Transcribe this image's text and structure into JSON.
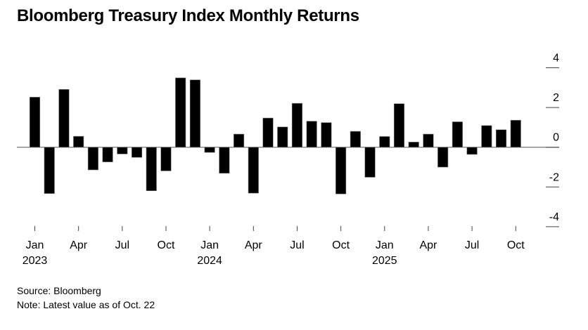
{
  "chart_data": {
    "type": "bar",
    "title": "Bloomberg Treasury Index Monthly Returns",
    "xlabel": "",
    "ylabel": "",
    "ylim": [
      -4,
      4
    ],
    "yticks": [
      4,
      2,
      0,
      -2,
      -4
    ],
    "y_axis_position": "right",
    "grid": false,
    "categories": [
      "Jan 2023",
      "Feb 2023",
      "Mar 2023",
      "Apr 2023",
      "May 2023",
      "Jun 2023",
      "Jul 2023",
      "Aug 2023",
      "Sep 2023",
      "Oct 2023",
      "Nov 2023",
      "Dec 2023",
      "Jan 2024",
      "Feb 2024",
      "Mar 2024",
      "Apr 2024",
      "May 2024",
      "Jun 2024",
      "Jul 2024",
      "Aug 2024",
      "Sep 2024",
      "Oct 2024",
      "Nov 2024",
      "Dec 2024",
      "Jan 2025",
      "Feb 2025",
      "Mar 2025",
      "Apr 2025",
      "May 2025",
      "Jun 2025",
      "Jul 2025",
      "Aug 2025",
      "Sep 2025",
      "Oct 2025"
    ],
    "values": [
      2.52,
      -2.33,
      2.91,
      0.55,
      -1.14,
      -0.74,
      -0.34,
      -0.51,
      -2.19,
      -1.19,
      3.49,
      3.39,
      -0.26,
      -1.31,
      0.66,
      -2.31,
      1.47,
      1.02,
      2.21,
      1.31,
      1.24,
      -2.35,
      0.8,
      -1.51,
      0.54,
      2.19,
      0.26,
      0.66,
      -1.0,
      1.28,
      -0.36,
      1.09,
      0.88,
      1.36
    ],
    "xticks": [
      {
        "index": 0,
        "label": "Jan",
        "year": "2023"
      },
      {
        "index": 3,
        "label": "Apr",
        "year": ""
      },
      {
        "index": 6,
        "label": "Jul",
        "year": ""
      },
      {
        "index": 9,
        "label": "Oct",
        "year": ""
      },
      {
        "index": 12,
        "label": "Jan",
        "year": "2024"
      },
      {
        "index": 15,
        "label": "Apr",
        "year": ""
      },
      {
        "index": 18,
        "label": "Jul",
        "year": ""
      },
      {
        "index": 21,
        "label": "Oct",
        "year": ""
      },
      {
        "index": 24,
        "label": "Jan",
        "year": "2025"
      },
      {
        "index": 27,
        "label": "Apr",
        "year": ""
      },
      {
        "index": 30,
        "label": "Jul",
        "year": ""
      },
      {
        "index": 33,
        "label": "Oct",
        "year": ""
      }
    ],
    "bar_color": "#000000"
  },
  "footer": {
    "source": "Source: Bloomberg",
    "note": "Note: Latest value as of Oct. 22"
  }
}
